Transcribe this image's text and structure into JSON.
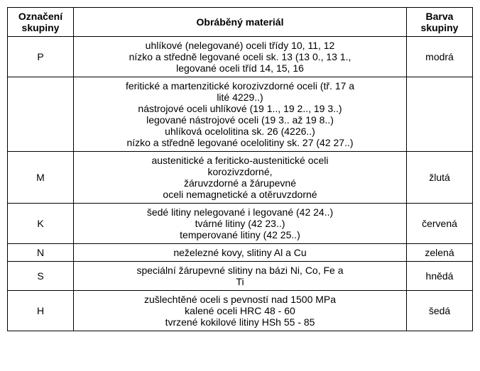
{
  "headers": {
    "group": "Označení skupiny",
    "material": "Obráběný materiál",
    "color": "Barva skupiny"
  },
  "rows": [
    {
      "group": "P",
      "material": "uhlíkové (nelegované) oceli třídy 10, 11, 12\nnízko a středně legované oceli sk. 13 (13 0., 13 1.,\nlegované oceli tříd 14, 15, 16",
      "color": "modrá"
    },
    {
      "group": "",
      "material": "feritické a martenzitické korozivzdorné oceli (tř. 17 a\nlité 4229..)\nnástrojové oceli uhlíkové (19 1.., 19 2.., 19 3..)\nlegované nástrojové oceli (19 3.. až 19 8..)\nuhlíková ocelolitina sk. 26 (4226..)\nnízko a středně legované ocelolitiny sk. 27 (42 27..)",
      "color": ""
    },
    {
      "group": "M",
      "material": "austenitické a feriticko-austenitické oceli\nkorozivzdorné,\nžáruvzdorné a žárupevné\noceli nemagnetické a otěruvzdorné",
      "color": "žlutá"
    },
    {
      "group": "K",
      "material": "šedé litiny nelegované i legované (42 24..)\ntvárné litiny (42 23..)\ntemperované litiny (42 25..)",
      "color": "červená"
    },
    {
      "group": "N",
      "material": "neželezné kovy, slitiny Al a Cu",
      "color": "zelená"
    },
    {
      "group": "S",
      "material": "speciální žárupevné slitiny na bázi Ni, Co, Fe a\nTi",
      "color": "hnědá"
    },
    {
      "group": "H",
      "material": "zušlechtěné oceli s pevností nad 1500 MPa\nkalené oceli HRC 48 - 60\ntvrzené kokilové litiny HSh 55 - 85",
      "color": "šedá"
    }
  ]
}
